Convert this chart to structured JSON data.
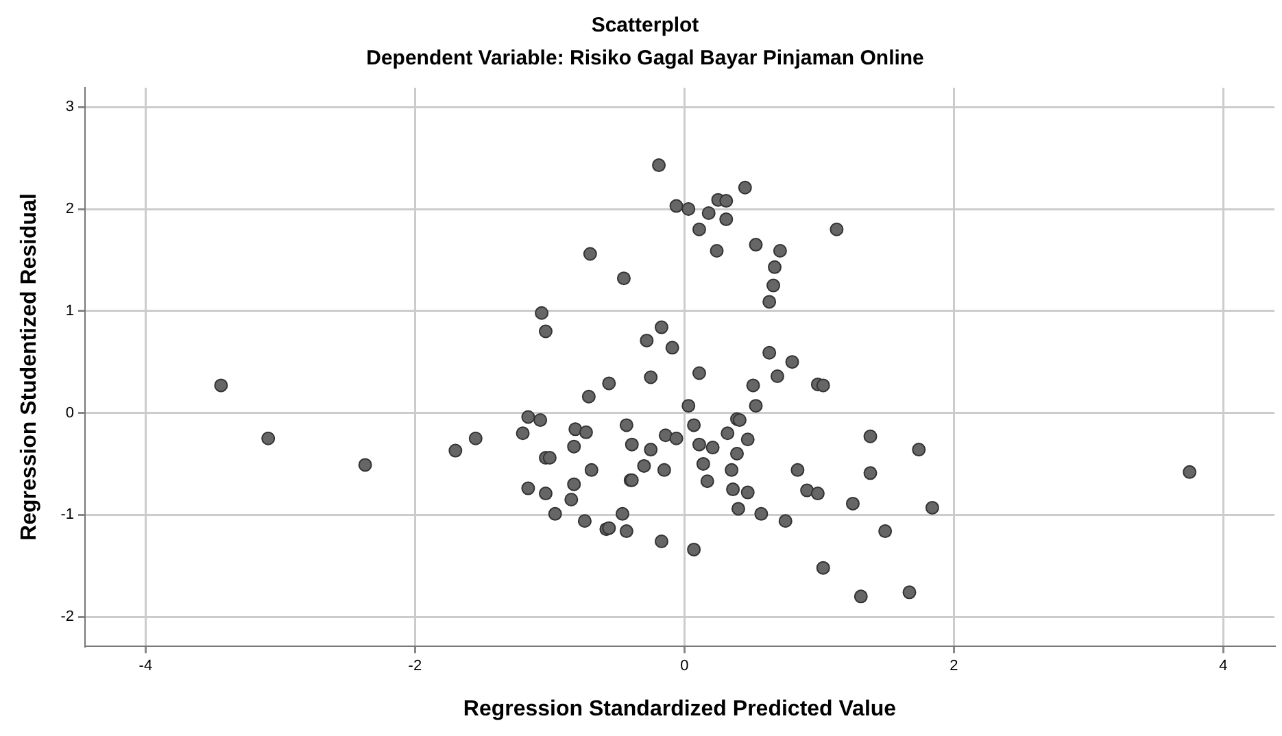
{
  "chart_data": {
    "type": "scatter",
    "title": "Scatterplot",
    "subtitle": "Dependent Variable: Risiko Gagal Bayar Pinjaman Online",
    "xlabel": "Regression Standardized Predicted Value",
    "ylabel": "Regression Studentized Residual",
    "x": [
      -3.44,
      -3.09,
      -2.37,
      -1.7,
      -1.55,
      -0.19,
      -0.06,
      0.03,
      0.25,
      0.31,
      0.45,
      0.18,
      0.31,
      0.11,
      0.24,
      0.53,
      0.71,
      0.67,
      0.66,
      0.63,
      -0.7,
      -0.45,
      -1.06,
      -1.03,
      -0.17,
      -0.28,
      -0.09,
      0.63,
      0.11,
      -0.25,
      -0.56,
      0.51,
      0.69,
      0.8,
      1.13,
      0.99,
      1.03,
      -0.71,
      0.53,
      0.03,
      -1.16,
      -1.07,
      -1.2,
      -0.81,
      -0.73,
      -0.43,
      -0.82,
      -0.39,
      -0.25,
      -0.14,
      -0.06,
      0.07,
      0.11,
      0.21,
      0.32,
      0.39,
      0.41,
      0.47,
      0.39,
      -1.03,
      -1.0,
      -0.69,
      -0.3,
      -0.15,
      0.14,
      0.35,
      -0.82,
      -0.4,
      -0.39,
      0.17,
      -1.16,
      -1.03,
      -0.84,
      0.36,
      0.47,
      0.4,
      0.57,
      0.75,
      -0.96,
      -0.46,
      -0.74,
      -0.58,
      -0.56,
      -0.43,
      -0.17,
      0.07,
      0.84,
      1.38,
      1.74,
      1.38,
      0.91,
      0.99,
      1.25,
      1.84,
      1.49,
      1.03,
      1.31,
      1.67,
      3.75
    ],
    "series": [
      {
        "color": "#666666",
        "values": [
          0.27,
          -0.25,
          -0.51,
          -0.37,
          -0.25,
          2.43,
          2.03,
          2.0,
          2.09,
          2.08,
          2.21,
          1.96,
          1.9,
          1.8,
          1.59,
          1.65,
          1.59,
          1.43,
          1.25,
          1.09,
          1.56,
          1.32,
          0.98,
          0.8,
          0.84,
          0.71,
          0.64,
          0.59,
          0.39,
          0.35,
          0.29,
          0.27,
          0.36,
          0.5,
          1.8,
          0.28,
          0.27,
          0.16,
          0.07,
          0.07,
          -0.04,
          -0.07,
          -0.2,
          -0.16,
          -0.19,
          -0.12,
          -0.33,
          -0.31,
          -0.36,
          -0.22,
          -0.25,
          -0.12,
          -0.31,
          -0.34,
          -0.2,
          -0.06,
          -0.07,
          -0.26,
          -0.4,
          -0.44,
          -0.44,
          -0.56,
          -0.52,
          -0.56,
          -0.5,
          -0.56,
          -0.7,
          -0.66,
          -0.66,
          -0.67,
          -0.74,
          -0.79,
          -0.85,
          -0.75,
          -0.78,
          -0.94,
          -0.99,
          -1.06,
          -0.99,
          -0.99,
          -1.06,
          -1.14,
          -1.13,
          -1.16,
          -1.26,
          -1.34,
          -0.56,
          -0.23,
          -0.36,
          -0.59,
          -0.76,
          -0.79,
          -0.89,
          -0.93,
          -1.16,
          -1.52,
          -1.8,
          -1.76,
          -0.58
        ]
      }
    ],
    "xlim": [
      -4.45,
      4.38
    ],
    "ylim": [
      -2.29,
      3.19
    ],
    "xticks": [
      -4,
      -2,
      0,
      2,
      4
    ],
    "yticks": [
      -2,
      -1,
      0,
      1,
      2,
      3
    ],
    "grid": true,
    "legend": false,
    "marker": "circle"
  }
}
